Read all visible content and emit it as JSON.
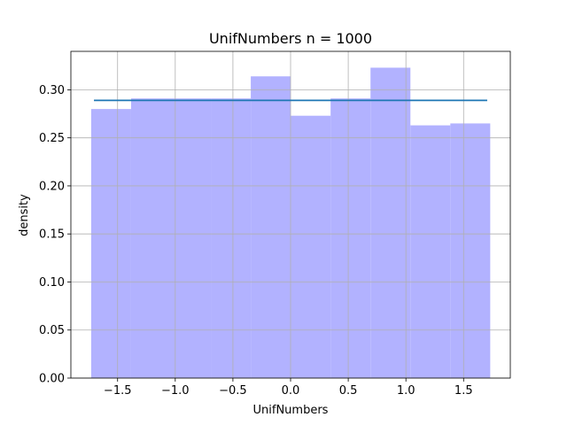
{
  "chart_data": {
    "type": "bar",
    "title": "UnifNumbers n = 1000",
    "xlabel": "UnifNumbers",
    "ylabel": "density",
    "xlim": [
      -1.905,
      1.905
    ],
    "ylim": [
      0.0,
      0.34
    ],
    "grid": true,
    "bar_color": "#b2b2ff",
    "line_color": "#1f77b4",
    "x_ticks": [
      -1.5,
      -1.0,
      -0.5,
      0.0,
      0.5,
      1.0,
      1.5
    ],
    "x_tick_labels": [
      "−1.5",
      "−1.0",
      "−0.5",
      "0.0",
      "0.5",
      "1.0",
      "1.5"
    ],
    "y_ticks": [
      0.0,
      0.05,
      0.1,
      0.15,
      0.2,
      0.25,
      0.3
    ],
    "y_tick_labels": [
      "0.00",
      "0.05",
      "0.10",
      "0.15",
      "0.20",
      "0.25",
      "0.30"
    ],
    "bin_edges": [
      -1.729,
      -1.383,
      -1.037,
      -0.691,
      -0.345,
      0.001,
      0.347,
      0.693,
      1.039,
      1.385,
      1.731
    ],
    "values": [
      0.28,
      0.291,
      0.291,
      0.291,
      0.314,
      0.273,
      0.291,
      0.323,
      0.263,
      0.265
    ],
    "series": [
      {
        "type": "line",
        "x": [
          -1.705,
          1.705
        ],
        "y": [
          0.289,
          0.289
        ]
      }
    ]
  }
}
